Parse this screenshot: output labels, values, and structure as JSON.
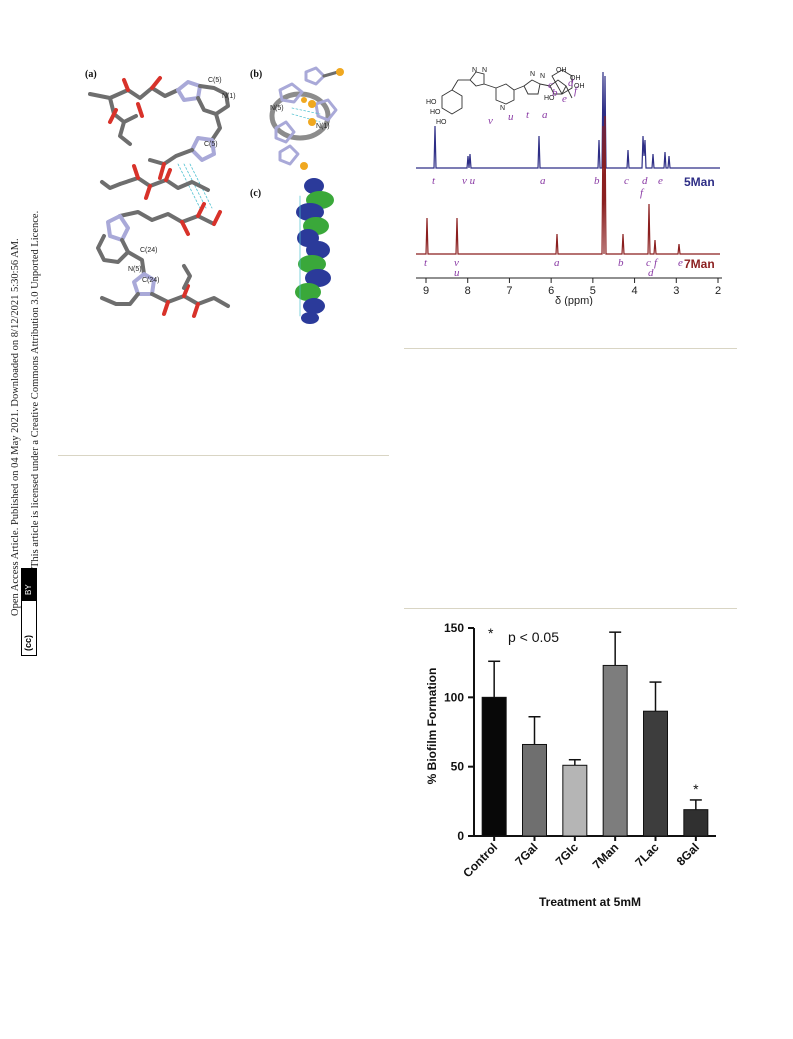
{
  "sidebar": {
    "license_line_1": "Open Access Article. Published on 04 May 2021. Downloaded on 8/12/2021 5:30:56 AM.",
    "license_line_2": "This article is licensed under a Creative Commons Attribution 3.0 Unported Licence.",
    "cc_badge_left": "(cc)",
    "cc_badge_right": "BY"
  },
  "crystal_figure": {
    "panel_a": "(a)",
    "panel_b": "(b)",
    "panel_c": "(c)",
    "atom_labels": [
      "C(5)",
      "N(1)",
      "C(5)",
      "C(24)",
      "N(5)",
      "C(24)",
      "N(5)",
      "N(1)"
    ],
    "colors": {
      "carbon": "#6e6e6e",
      "oxygen": "#d8322a",
      "nitrogen": "#a9a9d8",
      "blue_strand": "#2b3a9a",
      "green_strand": "#3aa83a",
      "sulfur": "#f0a820"
    }
  },
  "nmr_figure": {
    "structure_labels": {
      "v": "v",
      "u": "u",
      "t": "t",
      "a": "a",
      "b": "b",
      "c": "c",
      "d": "d",
      "e": "e",
      "f": "f"
    },
    "spectrum_5man": {
      "name": "5Man",
      "color": "#2e2e86",
      "peak_labels": [
        "t",
        "v u",
        "a",
        "b",
        "c",
        "d",
        "e",
        "f"
      ]
    },
    "spectrum_7man": {
      "name": "7Man",
      "color": "#8b1f1f",
      "peak_labels": [
        "t",
        "v",
        "u",
        "a",
        "b",
        "c",
        "e",
        "f",
        "d"
      ]
    },
    "x_axis": {
      "label": "δ (ppm)",
      "ticks": [
        "9",
        "8",
        "7",
        "6",
        "5",
        "4",
        "3",
        "2"
      ]
    },
    "letter_color": "#8a3ba5"
  },
  "chart_data": {
    "type": "bar",
    "categories": [
      "Control",
      "7Gal",
      "7Glc",
      "7Man",
      "7Lac",
      "8Gal"
    ],
    "values": [
      100,
      66,
      51,
      123,
      90,
      19
    ],
    "errors": [
      26,
      20,
      4,
      24,
      21,
      7
    ],
    "significant": [
      false,
      false,
      false,
      false,
      false,
      true
    ],
    "bar_colors": [
      "#080808",
      "#6f6f6f",
      "#b5b5b5",
      "#7d7d7d",
      "#3d3d3d",
      "#303030"
    ],
    "ylabel": "% Biofilm Formation",
    "xlabel": "Treatment at 5mM",
    "ylim": [
      0,
      150
    ],
    "yticks": [
      0,
      50,
      100,
      150
    ],
    "legend_marker": "*",
    "legend_text": "p < 0.05",
    "significance_marker": "*"
  }
}
